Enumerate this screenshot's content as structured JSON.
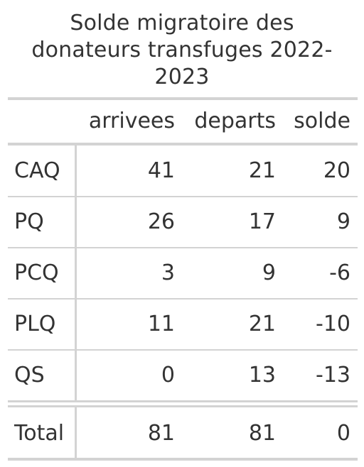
{
  "title": "Solde migratoire des donateurs transfuges 2022-2023",
  "title_lines": [
    "Solde migratoire des",
    "donateurs transfuges 2022-",
    "2023"
  ],
  "columns": [
    "arrivees",
    "departs",
    "solde"
  ],
  "rows": [
    {
      "label": "CAQ",
      "arrivees": "41",
      "departs": "21",
      "solde": "20"
    },
    {
      "label": "PQ",
      "arrivees": "26",
      "departs": "17",
      "solde": "9"
    },
    {
      "label": "PCQ",
      "arrivees": "3",
      "departs": "9",
      "solde": "-6"
    },
    {
      "label": "PLQ",
      "arrivees": "11",
      "departs": "21",
      "solde": "-10"
    },
    {
      "label": "QS",
      "arrivees": "0",
      "departs": "13",
      "solde": "-13"
    }
  ],
  "total": {
    "label": "Total",
    "arrivees": "81",
    "departs": "81",
    "solde": "0"
  },
  "colors": {
    "text": "#333333",
    "rule": "#d3d3d3",
    "background": "#ffffff"
  }
}
